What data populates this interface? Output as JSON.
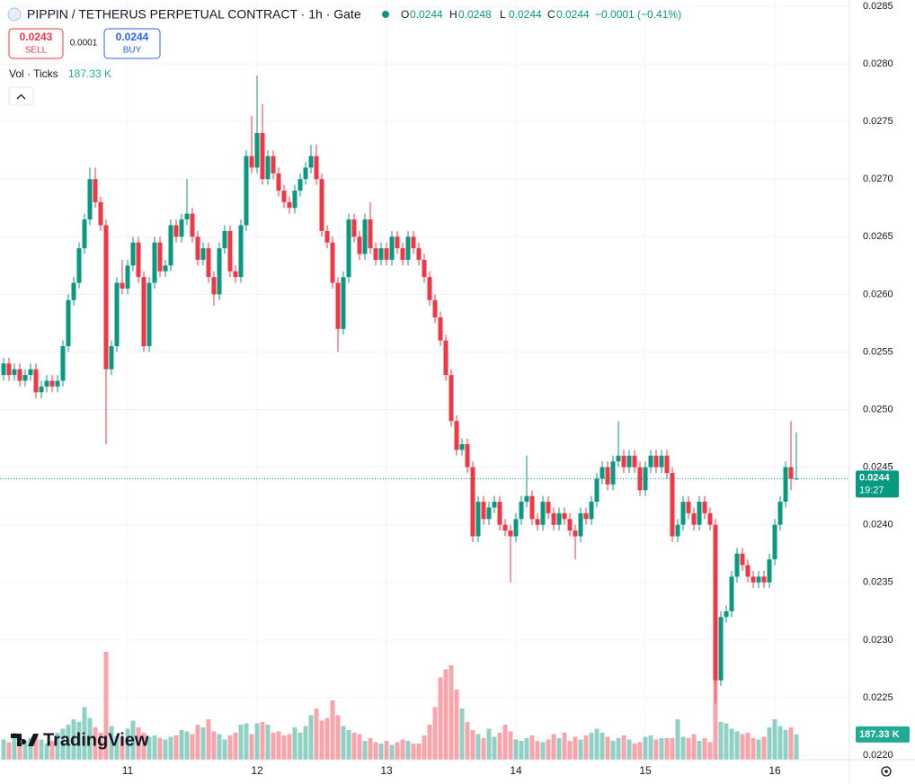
{
  "chart_data": {
    "type": "candlestick",
    "title": "PIPPIN / TETHERUS PERPETUAL CONTRACT · 1h · Gate",
    "ohlc": [
      {
        "key": "O",
        "value": 0.0244
      },
      {
        "key": "H",
        "value": 0.0248
      },
      {
        "key": "L",
        "value": 0.0244
      },
      {
        "key": "C",
        "value": 0.0244
      }
    ],
    "change": "−0.0001 (−0.41%)",
    "sell_price": 0.0243,
    "sell_label": "SELL",
    "spread": 0.0001,
    "buy_price": 0.0244,
    "buy_label": "BUY",
    "volume_title": "Vol · Ticks",
    "volume_label": "187.33 K",
    "last_price": 0.0244,
    "countdown": "19:27",
    "logo": "TradingView",
    "up_color": "#089981",
    "down_color": "#f23645",
    "ylim": [
      0.022,
      0.0285
    ],
    "yticks": [
      0.0285,
      {
        "value": 0.028,
        "label": "0.0280"
      },
      0.0275,
      {
        "value": 0.027,
        "label": "0.0270"
      },
      0.0265,
      {
        "value": 0.026,
        "label": "0.0260"
      },
      0.0255,
      {
        "value": 0.025,
        "label": "0.0250"
      },
      0.0245,
      {
        "value": 0.024,
        "label": "0.0240"
      },
      0.0235,
      {
        "value": 0.023,
        "label": "0.0230"
      },
      0.0225,
      {
        "value": 0.022,
        "label": "0.0220"
      }
    ],
    "xticks": [
      {
        "value": 23,
        "label": "11"
      },
      {
        "value": 47,
        "label": "12"
      },
      {
        "value": 71,
        "label": "13"
      },
      {
        "value": 95,
        "label": "14"
      },
      {
        "value": 119,
        "label": "15"
      },
      {
        "value": 143,
        "label": "16"
      }
    ],
    "grid": true,
    "open": [
      0.0253,
      0.0254,
      0.0253,
      0.02535,
      0.02525,
      0.0253,
      0.02535,
      0.02515,
      0.0252,
      0.02525,
      0.0252,
      0.02525,
      0.02555,
      0.02595,
      0.0261,
      0.0264,
      0.02665,
      0.027,
      0.0268,
      0.0266,
      0.02535,
      0.02555,
      0.0261,
      0.02605,
      0.02625,
      0.02645,
      0.02615,
      0.02555,
      0.0261,
      0.02645,
      0.0262,
      0.02625,
      0.0266,
      0.0265,
      0.02665,
      0.0267,
      0.0265,
      0.0263,
      0.0264,
      0.02615,
      0.026,
      0.0264,
      0.02655,
      0.0262,
      0.02615,
      0.0266,
      0.0272,
      0.0271,
      0.0274,
      0.027,
      0.0272,
      0.02705,
      0.0269,
      0.0268,
      0.02675,
      0.0269,
      0.027,
      0.0271,
      0.0272,
      0.027,
      0.02655,
      0.02645,
      0.0261,
      0.0257,
      0.02615,
      0.02665,
      0.0265,
      0.02635,
      0.02665,
      0.0264,
      0.0263,
      0.0264,
      0.0263,
      0.0265,
      0.0264,
      0.0263,
      0.0265,
      0.0264,
      0.0263,
      0.02615,
      0.02595,
      0.0258,
      0.0256,
      0.0253,
      0.0249,
      0.02465,
      0.0247,
      0.0245,
      0.0239,
      0.0242,
      0.02405,
      0.02415,
      0.0242,
      0.024,
      0.02395,
      0.0239,
      0.02405,
      0.0242,
      0.02425,
      0.02405,
      0.024,
      0.0242,
      0.0241,
      0.024,
      0.0241,
      0.02405,
      0.02395,
      0.0239,
      0.0241,
      0.02405,
      0.0242,
      0.0244,
      0.0245,
      0.02435,
      0.02455,
      0.0246,
      0.0245,
      0.0246,
      0.0245,
      0.0243,
      0.0245,
      0.0246,
      0.0245,
      0.0246,
      0.02445,
      0.0239,
      0.024,
      0.0242,
      0.0241,
      0.024,
      0.0242,
      0.0241,
      0.024,
      0.02265,
      0.0232,
      0.02325,
      0.02355,
      0.02375,
      0.02365,
      0.02355,
      0.0235,
      0.02355,
      0.0235,
      0.0237,
      0.024,
      0.0242,
      0.0245,
      0.0244
    ],
    "high": [
      0.02545,
      0.02545,
      0.0254,
      0.0254,
      0.02535,
      0.0254,
      0.0254,
      0.02525,
      0.0253,
      0.0253,
      0.0253,
      0.0256,
      0.026,
      0.02615,
      0.02645,
      0.0267,
      0.0271,
      0.0271,
      0.02685,
      0.02665,
      0.0256,
      0.02615,
      0.0263,
      0.0263,
      0.0265,
      0.0265,
      0.0262,
      0.02615,
      0.0265,
      0.0265,
      0.0263,
      0.02665,
      0.02665,
      0.0267,
      0.027,
      0.02675,
      0.02655,
      0.02645,
      0.02645,
      0.0262,
      0.02645,
      0.0266,
      0.0266,
      0.02625,
      0.02665,
      0.02725,
      0.02755,
      0.0279,
      0.02765,
      0.02725,
      0.02725,
      0.0271,
      0.02695,
      0.02685,
      0.02695,
      0.02705,
      0.02715,
      0.0273,
      0.0273,
      0.02705,
      0.0266,
      0.0265,
      0.02615,
      0.0262,
      0.0267,
      0.0267,
      0.02655,
      0.0267,
      0.0268,
      0.02645,
      0.02645,
      0.02645,
      0.02655,
      0.02655,
      0.02645,
      0.02655,
      0.02655,
      0.02645,
      0.02635,
      0.0262,
      0.026,
      0.02585,
      0.02565,
      0.02535,
      0.02495,
      0.02475,
      0.02475,
      0.02455,
      0.02425,
      0.02425,
      0.0242,
      0.02425,
      0.02425,
      0.02405,
      0.024,
      0.0241,
      0.02425,
      0.0246,
      0.0243,
      0.0241,
      0.02425,
      0.02425,
      0.02415,
      0.02415,
      0.02415,
      0.0241,
      0.024,
      0.02415,
      0.02415,
      0.02425,
      0.02445,
      0.02455,
      0.02455,
      0.0246,
      0.0249,
      0.02465,
      0.02465,
      0.02465,
      0.02455,
      0.02455,
      0.02465,
      0.02465,
      0.02465,
      0.02465,
      0.0245,
      0.02405,
      0.02425,
      0.02425,
      0.02415,
      0.02425,
      0.02425,
      0.02415,
      0.02405,
      0.02325,
      0.0233,
      0.0236,
      0.0238,
      0.0238,
      0.0237,
      0.0236,
      0.0236,
      0.0236,
      0.02375,
      0.02405,
      0.02425,
      0.02455,
      0.0249,
      0.0248
    ],
    "low": [
      0.02525,
      0.02525,
      0.02525,
      0.0252,
      0.0252,
      0.02525,
      0.0251,
      0.0251,
      0.02515,
      0.02515,
      0.02515,
      0.0252,
      0.0255,
      0.0259,
      0.02605,
      0.02635,
      0.0266,
      0.02675,
      0.02655,
      0.0247,
      0.0253,
      0.0255,
      0.026,
      0.026,
      0.0262,
      0.0261,
      0.0255,
      0.0255,
      0.02605,
      0.02615,
      0.02615,
      0.0262,
      0.02645,
      0.02645,
      0.0266,
      0.02645,
      0.02625,
      0.02625,
      0.0261,
      0.0259,
      0.02595,
      0.02635,
      0.02615,
      0.0261,
      0.0261,
      0.02655,
      0.02705,
      0.02705,
      0.02695,
      0.02695,
      0.027,
      0.02685,
      0.02675,
      0.0267,
      0.0267,
      0.02685,
      0.02695,
      0.02705,
      0.02695,
      0.0265,
      0.0264,
      0.02605,
      0.0255,
      0.02565,
      0.0261,
      0.02645,
      0.0263,
      0.0263,
      0.02635,
      0.02625,
      0.02625,
      0.02625,
      0.02625,
      0.02635,
      0.02625,
      0.02625,
      0.02635,
      0.02625,
      0.0261,
      0.0259,
      0.02575,
      0.02555,
      0.02525,
      0.02485,
      0.0246,
      0.0246,
      0.02445,
      0.02385,
      0.02385,
      0.024,
      0.024,
      0.0241,
      0.02395,
      0.0239,
      0.0235,
      0.02385,
      0.024,
      0.02415,
      0.024,
      0.02395,
      0.02395,
      0.02405,
      0.02395,
      0.02395,
      0.024,
      0.0239,
      0.0237,
      0.02385,
      0.024,
      0.024,
      0.02415,
      0.02435,
      0.0243,
      0.0243,
      0.0245,
      0.02445,
      0.02445,
      0.02445,
      0.02425,
      0.02425,
      0.02445,
      0.02445,
      0.02445,
      0.0244,
      0.02385,
      0.02385,
      0.02395,
      0.02405,
      0.02395,
      0.02395,
      0.02405,
      0.02395,
      0.02245,
      0.0226,
      0.02315,
      0.0232,
      0.0235,
      0.0236,
      0.0235,
      0.02345,
      0.02345,
      0.02345,
      0.02345,
      0.02365,
      0.02395,
      0.02415,
      0.0243,
      0.0244
    ],
    "close": [
      0.0254,
      0.0253,
      0.02535,
      0.02525,
      0.0253,
      0.02535,
      0.02515,
      0.0252,
      0.02525,
      0.0252,
      0.02525,
      0.02555,
      0.02595,
      0.0261,
      0.0264,
      0.02665,
      0.027,
      0.0268,
      0.0266,
      0.02535,
      0.02555,
      0.0261,
      0.02605,
      0.02625,
      0.02645,
      0.02615,
      0.02555,
      0.0261,
      0.02645,
      0.0262,
      0.02625,
      0.0266,
      0.0265,
      0.02665,
      0.0267,
      0.0265,
      0.0263,
      0.0264,
      0.02615,
      0.026,
      0.0264,
      0.02655,
      0.0262,
      0.02615,
      0.0266,
      0.0272,
      0.0271,
      0.0274,
      0.027,
      0.0272,
      0.02705,
      0.0269,
      0.0268,
      0.02675,
      0.0269,
      0.027,
      0.0271,
      0.0272,
      0.027,
      0.02655,
      0.02645,
      0.0261,
      0.0257,
      0.02615,
      0.02665,
      0.0265,
      0.02635,
      0.02665,
      0.0264,
      0.0263,
      0.0264,
      0.0263,
      0.0265,
      0.0264,
      0.0263,
      0.0265,
      0.0264,
      0.0263,
      0.02615,
      0.02595,
      0.0258,
      0.0256,
      0.0253,
      0.0249,
      0.02465,
      0.0247,
      0.0245,
      0.0239,
      0.0242,
      0.02405,
      0.02415,
      0.0242,
      0.024,
      0.02395,
      0.0239,
      0.02405,
      0.0242,
      0.02425,
      0.02405,
      0.024,
      0.0242,
      0.0241,
      0.024,
      0.0241,
      0.02405,
      0.02395,
      0.0239,
      0.0241,
      0.02405,
      0.0242,
      0.0244,
      0.0245,
      0.02435,
      0.02455,
      0.0246,
      0.0245,
      0.0246,
      0.0245,
      0.0243,
      0.0245,
      0.0246,
      0.0245,
      0.0246,
      0.02445,
      0.0239,
      0.024,
      0.0242,
      0.0241,
      0.024,
      0.0242,
      0.0241,
      0.024,
      0.02265,
      0.0232,
      0.02325,
      0.02355,
      0.02375,
      0.02365,
      0.02355,
      0.0235,
      0.02355,
      0.0235,
      0.0237,
      0.024,
      0.0242,
      0.0245,
      0.0244,
      0.0244
    ],
    "volume": [
      150000,
      130000,
      200000,
      170000,
      140000,
      160000,
      180000,
      150000,
      120000,
      140000,
      200000,
      230000,
      260000,
      300000,
      280000,
      390000,
      310000,
      240000,
      200000,
      800000,
      250000,
      180000,
      170000,
      230000,
      290000,
      240000,
      200000,
      170000,
      180000,
      160000,
      150000,
      170000,
      180000,
      220000,
      210000,
      190000,
      260000,
      240000,
      300000,
      210000,
      190000,
      150000,
      180000,
      200000,
      260000,
      270000,
      190000,
      270000,
      280000,
      260000,
      200000,
      210000,
      180000,
      190000,
      240000,
      200000,
      250000,
      330000,
      380000,
      290000,
      310000,
      440000,
      330000,
      250000,
      220000,
      200000,
      190000,
      140000,
      160000,
      130000,
      120000,
      140000,
      110000,
      130000,
      150000,
      140000,
      120000,
      120000,
      180000,
      260000,
      390000,
      610000,
      670000,
      700000,
      520000,
      380000,
      280000,
      220000,
      190000,
      160000,
      230000,
      170000,
      200000,
      260000,
      210000,
      150000,
      140000,
      160000,
      180000,
      140000,
      130000,
      150000,
      190000,
      160000,
      200000,
      140000,
      170000,
      150000,
      180000,
      200000,
      230000,
      200000,
      170000,
      140000,
      160000,
      180000,
      150000,
      120000,
      130000,
      170000,
      180000,
      150000,
      160000,
      160000,
      160000,
      300000,
      170000,
      160000,
      190000,
      140000,
      160000,
      130000,
      620000,
      280000,
      270000,
      230000,
      210000,
      190000,
      200000,
      160000,
      150000,
      170000,
      240000,
      300000,
      250000,
      220000,
      240000,
      187330
    ]
  }
}
